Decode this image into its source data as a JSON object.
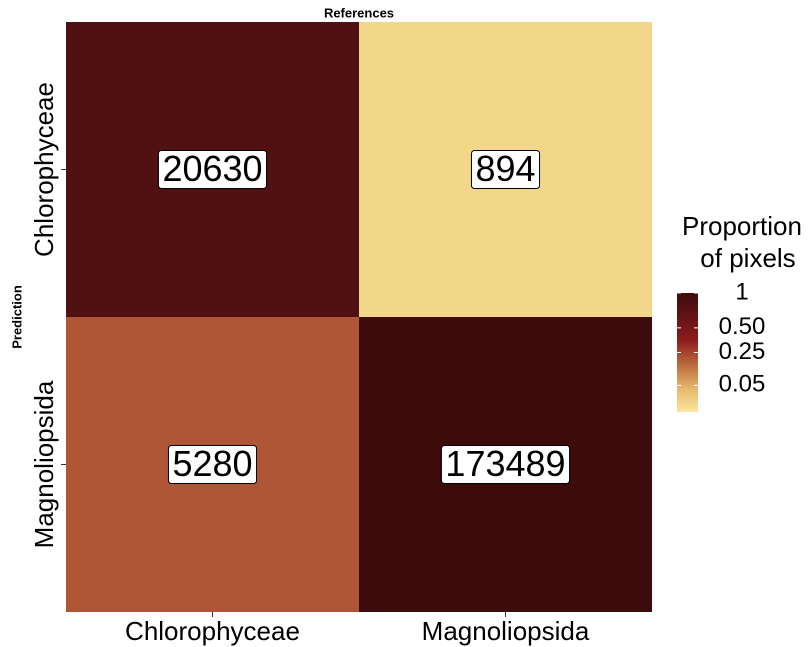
{
  "chart_data": {
    "type": "heatmap",
    "title": "References",
    "y_label": "Prediction",
    "x_categories": [
      "Chlorophyceae",
      "Magnoliopsida"
    ],
    "y_categories": [
      "Chlorophyceae",
      "Magnoliopsida"
    ],
    "values": [
      [
        20630,
        894
      ],
      [
        5280,
        173489
      ]
    ],
    "legend_title": "Proportion of pixels",
    "colorbar_lim": [
      0,
      1
    ],
    "colorbar_scale": "sqrt",
    "colorbar_ticks": [
      1,
      {
        "value": 0.5,
        "label": "0.50"
      },
      0.25,
      0.05
    ],
    "colors": [
      "#fbe69c",
      "#e3b86a",
      "#b96a3e",
      "#8e1d1d",
      "#621416",
      "#3e0b0c"
    ]
  }
}
